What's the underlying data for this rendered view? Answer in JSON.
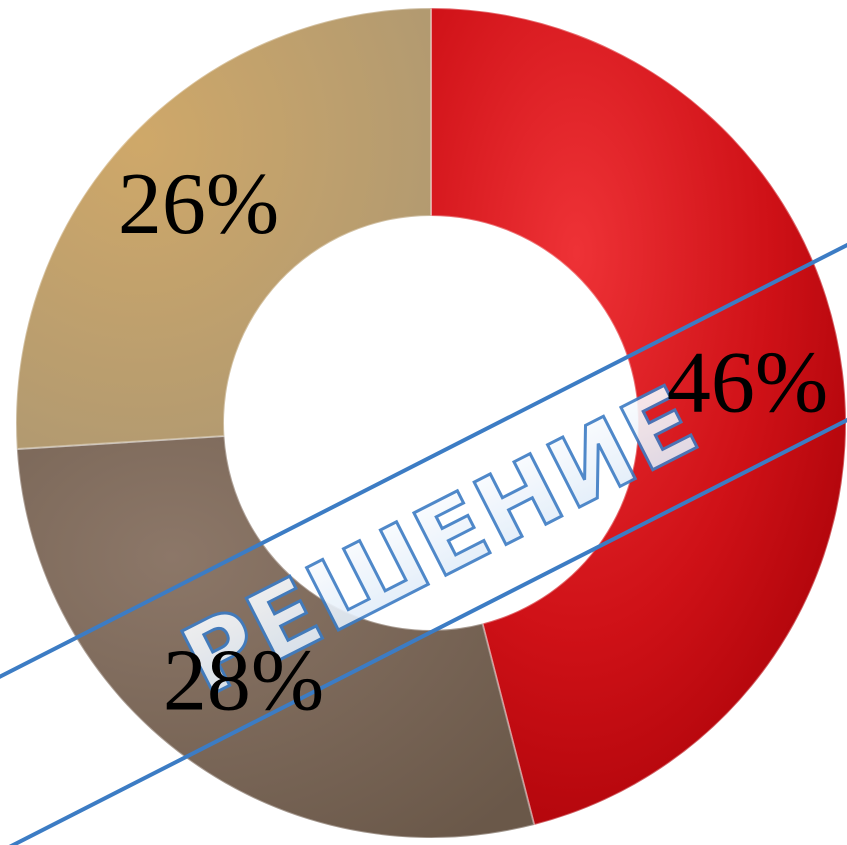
{
  "chart_data": {
    "type": "pie",
    "donut": true,
    "title": "",
    "legend": "none",
    "slices": [
      {
        "value": 46,
        "label": "46%",
        "color": "#d4161c"
      },
      {
        "value": 28,
        "label": "28%",
        "color": "#7e6a5c"
      },
      {
        "value": 26,
        "label": "26%",
        "color": "#b99c72"
      }
    ]
  },
  "watermark": {
    "text": "РЕШЕНИЕ",
    "color": "#3c7cc4"
  }
}
